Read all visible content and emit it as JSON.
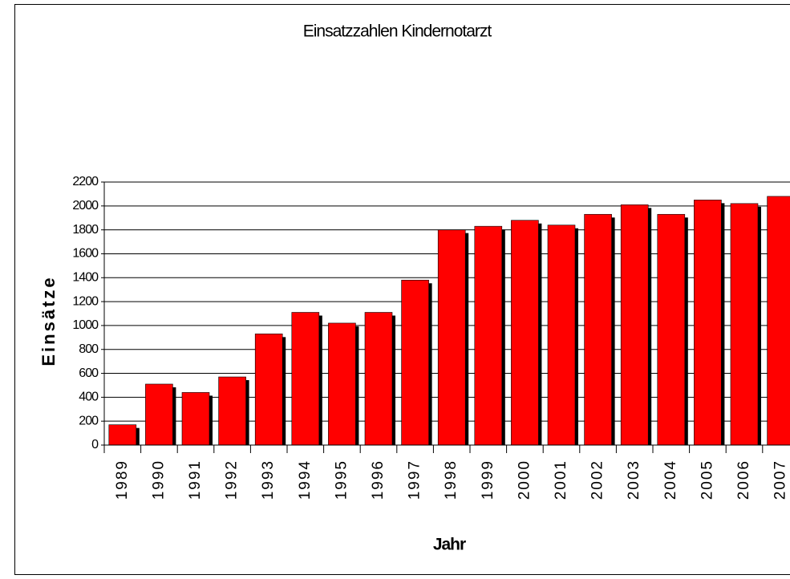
{
  "chart_data": {
    "type": "bar",
    "title": "Einsatzzahlen Kindernotarzt",
    "x_label": "Jahr",
    "y_label": "Einsätze",
    "categories": [
      "1989",
      "1990",
      "1991",
      "1992",
      "1993",
      "1994",
      "1995",
      "1996",
      "1997",
      "1998",
      "1999",
      "2000",
      "2001",
      "2002",
      "2003",
      "2004",
      "2005",
      "2006",
      "2007"
    ],
    "values": [
      170,
      510,
      440,
      570,
      930,
      1110,
      1020,
      1110,
      1380,
      1800,
      1830,
      1880,
      1840,
      1930,
      2010,
      1930,
      2050,
      2020,
      2080
    ],
    "color": "#ff0000",
    "ylim": [
      0,
      2200
    ],
    "yticks": [
      0,
      200,
      400,
      600,
      800,
      1000,
      1200,
      1400,
      1600,
      1800,
      2000,
      2200
    ],
    "grid": true
  }
}
